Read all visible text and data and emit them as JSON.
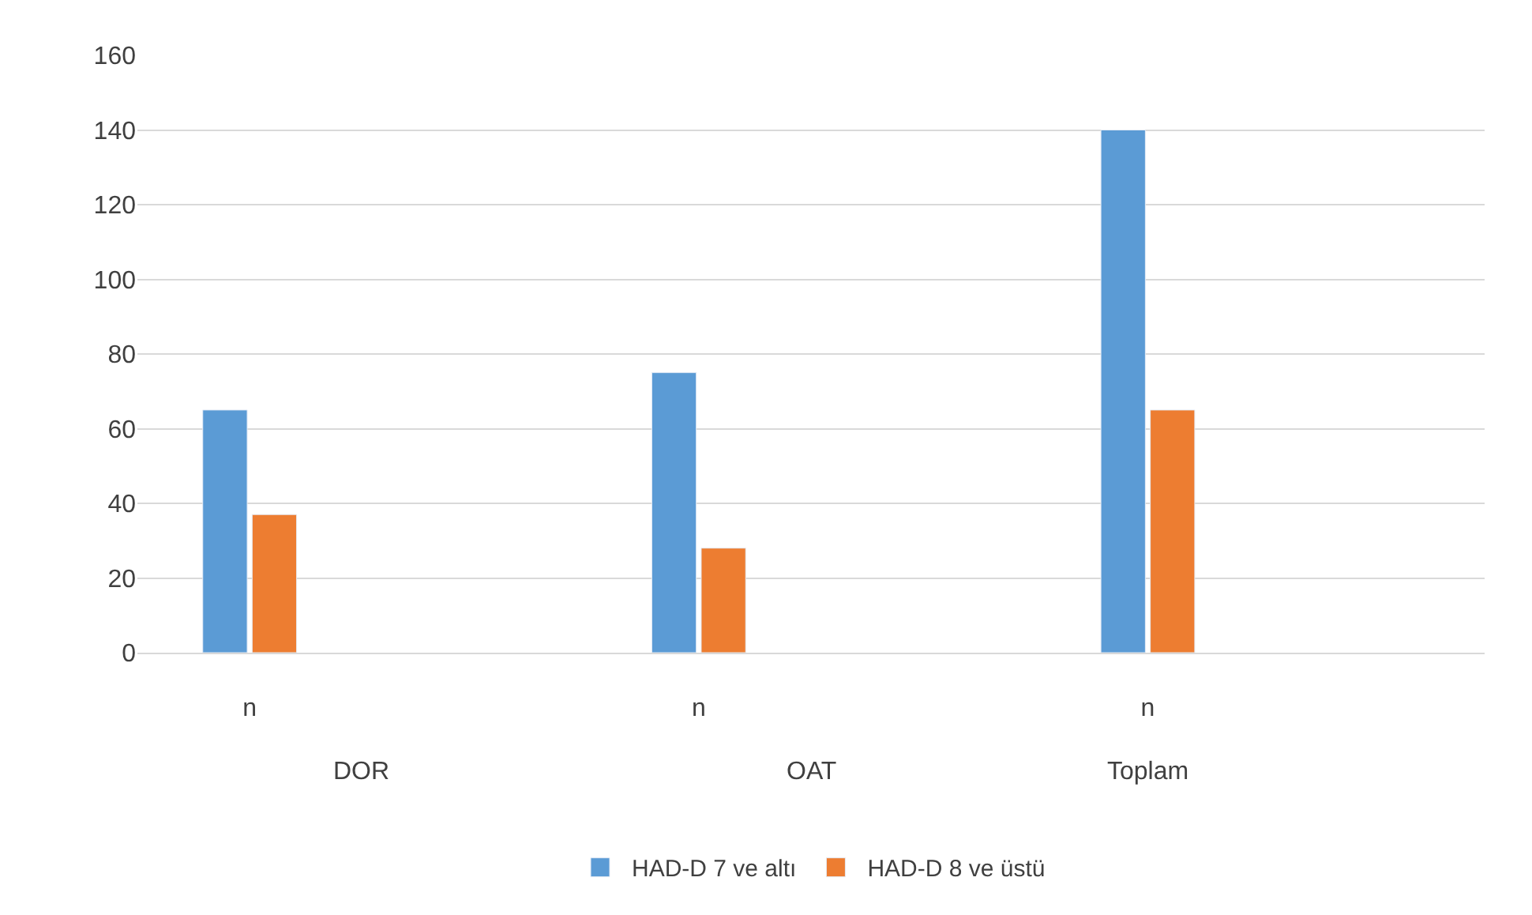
{
  "chart_data": {
    "type": "bar",
    "categories": [
      "n",
      null,
      "n",
      null,
      "n",
      null
    ],
    "series": [
      {
        "name": "HAD-D 7 ve altı",
        "color": "#5b9bd5",
        "values": [
          65,
          null,
          75,
          null,
          140,
          null
        ]
      },
      {
        "name": "HAD-D 8 ve üstü",
        "color": "#ed7d31",
        "values": [
          37,
          null,
          28,
          null,
          65,
          null
        ]
      }
    ],
    "annotations": [
      "DOR",
      "OAT",
      "Toplam"
    ],
    "ylim": [
      0,
      160
    ],
    "yticks": [
      0,
      20,
      40,
      60,
      80,
      100,
      120,
      140,
      160
    ],
    "grid": "y",
    "legend": "bottom"
  }
}
